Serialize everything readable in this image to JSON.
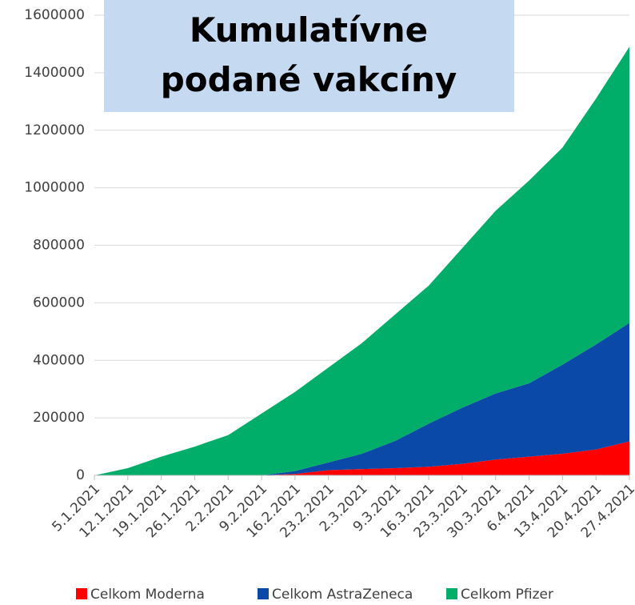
{
  "chart_data": {
    "type": "stacked_area",
    "title": "Kumulatívne podané vakcíny",
    "categories": [
      "5.1.2021",
      "12.1.2021",
      "19.1.2021",
      "26.1.2021",
      "2.2.2021",
      "9.2.2021",
      "16.2.2021",
      "23.2.2021",
      "2.3.2021",
      "9.3.2021",
      "16.3.2021",
      "23.3.2021",
      "30.3.2021",
      "6.4.2021",
      "13.4.2021",
      "20.4.2021",
      "27.4.2021"
    ],
    "series": [
      {
        "name": "Celkom Moderna",
        "color": "#ff0000",
        "values": [
          0,
          0,
          0,
          0,
          0,
          0,
          5000,
          18000,
          22000,
          25000,
          30000,
          40000,
          55000,
          65000,
          75000,
          90000,
          118000
        ]
      },
      {
        "name": "Celkom AstraZeneca",
        "color": "#0b49a8",
        "values": [
          0,
          0,
          0,
          0,
          0,
          0,
          10000,
          27000,
          53000,
          95000,
          150000,
          195000,
          230000,
          255000,
          310000,
          365000,
          412000
        ]
      },
      {
        "name": "Celkom Pfizer",
        "color": "#00ad69",
        "values": [
          0,
          25000,
          65000,
          100000,
          140000,
          215000,
          275000,
          330000,
          385000,
          440000,
          480000,
          555000,
          635000,
          705000,
          755000,
          855000,
          960000
        ]
      }
    ],
    "ylim": [
      0,
      1600000
    ],
    "yticks": [
      0,
      200000,
      400000,
      600000,
      800000,
      1000000,
      1200000,
      1400000,
      1600000
    ],
    "grid": true
  }
}
